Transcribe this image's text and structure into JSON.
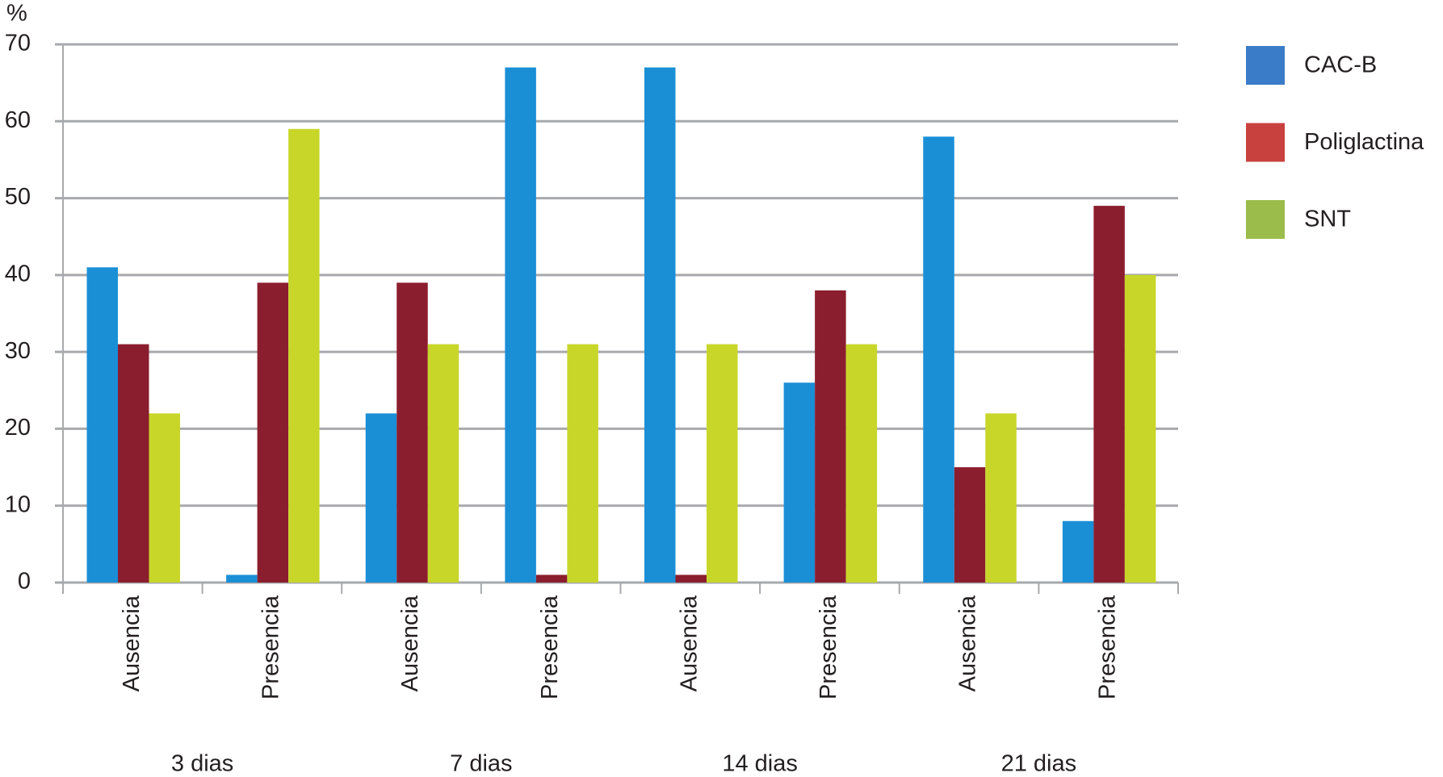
{
  "chart_data": {
    "type": "bar",
    "y_unit": "%",
    "categories": [
      "Ausencia",
      "Presencia",
      "Ausencia",
      "Presencia",
      "Ausencia",
      "Presencia",
      "Ausencia",
      "Presencia"
    ],
    "group_labels": [
      "3 dias",
      "7 dias",
      "14 dias",
      "21 dias"
    ],
    "series": [
      {
        "name": "CAC-B",
        "color": "#1a8fd6",
        "legend_color": "#3a7cc8",
        "values": [
          41,
          1,
          22,
          67,
          67,
          26,
          58,
          8
        ]
      },
      {
        "name": "Poliglactina",
        "color": "#8b1e2e",
        "legend_color": "#c9413f",
        "values": [
          31,
          39,
          39,
          1,
          1,
          38,
          15,
          49
        ]
      },
      {
        "name": "SNT",
        "color": "#c8d62a",
        "legend_color": "#9bbb4a",
        "values": [
          22,
          59,
          31,
          31,
          31,
          31,
          22,
          40
        ]
      }
    ],
    "ylim": [
      0,
      70
    ],
    "yticks": [
      0,
      10,
      20,
      30,
      40,
      50,
      60,
      70
    ],
    "grid": true,
    "legend": "right"
  }
}
